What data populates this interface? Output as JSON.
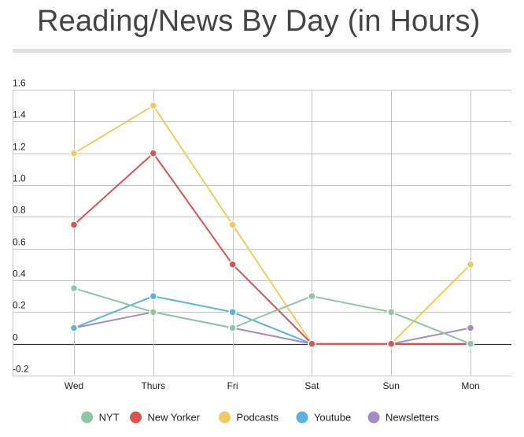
{
  "chart_data": {
    "type": "line",
    "title": "Reading/News By Day (in Hours)",
    "xlabel": "",
    "ylabel": "",
    "categories": [
      "Wed",
      "Thurs",
      "Fri",
      "Sat",
      "Sun",
      "Mon"
    ],
    "ylim": [
      -0.2,
      1.6
    ],
    "yticks": [
      -0.2,
      0,
      0.2,
      0.4,
      0.6,
      0.8,
      1.0,
      1.2,
      1.4,
      1.6
    ],
    "ytick_labels": [
      "-0.2",
      "0",
      "0.2",
      "0.4",
      "0.6",
      "0.8",
      "1.0",
      "1.2",
      "1.4",
      "1.6"
    ],
    "grid": true,
    "legend_position": "bottom",
    "series": [
      {
        "name": "NYT",
        "color": "#8fc7a4",
        "values": [
          0.35,
          0.2,
          0.1,
          0.3,
          0.2,
          0
        ]
      },
      {
        "name": "New Yorker",
        "color": "#d9534f",
        "values": [
          0.75,
          1.2,
          0.5,
          0,
          0,
          0
        ]
      },
      {
        "name": "Podcasts",
        "color": "#f1cb62",
        "values": [
          1.2,
          1.5,
          0.75,
          0,
          0,
          0.5
        ]
      },
      {
        "name": "Youtube",
        "color": "#5bb3e0",
        "values": [
          0.1,
          0.3,
          0.2,
          0,
          0,
          0
        ]
      },
      {
        "name": "Newsletters",
        "color": "#a48cc4",
        "values": [
          0.1,
          0.2,
          0.1,
          0,
          0,
          0.1
        ]
      }
    ]
  }
}
